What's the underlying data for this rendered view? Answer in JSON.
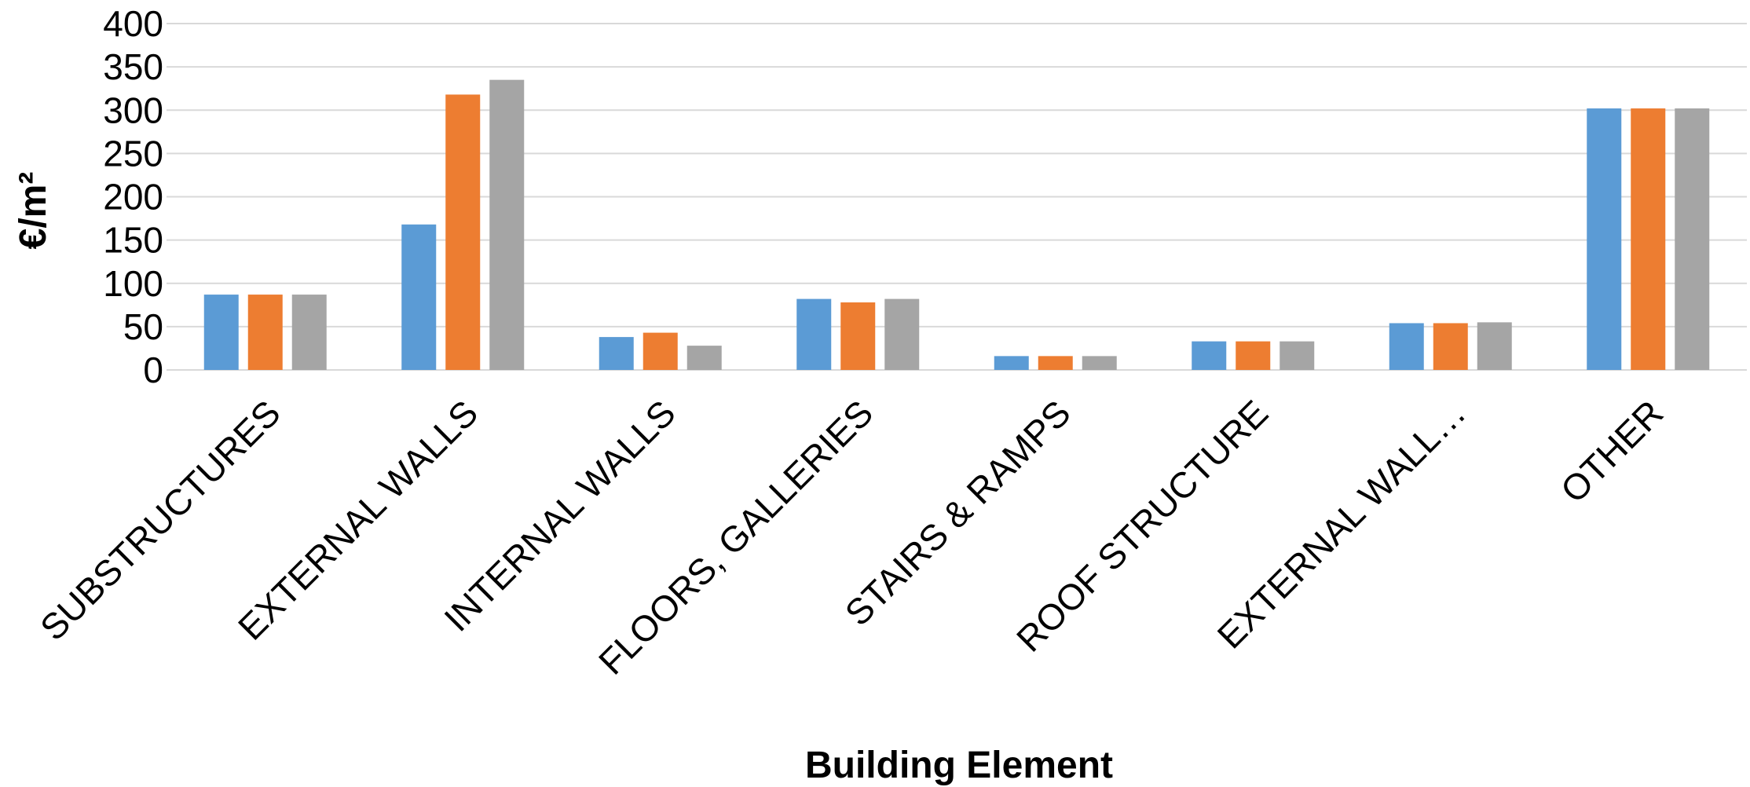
{
  "chart_data": {
    "type": "bar",
    "title": "",
    "xlabel": "Building Element",
    "ylabel": "€/m²",
    "ylim": [
      0,
      400
    ],
    "yticks": [
      0,
      50,
      100,
      150,
      200,
      250,
      300,
      350,
      400
    ],
    "grid": true,
    "legend": "none",
    "categories": [
      "SUBSTRUCTURES",
      "EXTERNAL WALLS",
      "INTERNAL WALLS",
      "FLOORS, GALLERIES",
      "STAIRS & RAMPS",
      "ROOF STRUCTURE",
      "EXTERNAL WALL…",
      "OTHER"
    ],
    "series": [
      {
        "color": "#5b9bd5",
        "values": [
          87,
          168,
          38,
          82,
          16,
          33,
          54,
          302
        ]
      },
      {
        "color": "#ed7d31",
        "values": [
          87,
          318,
          43,
          78,
          16,
          33,
          54,
          302
        ]
      },
      {
        "color": "#a5a5a5",
        "values": [
          87,
          335,
          28,
          82,
          16,
          33,
          55,
          302
        ]
      }
    ]
  }
}
